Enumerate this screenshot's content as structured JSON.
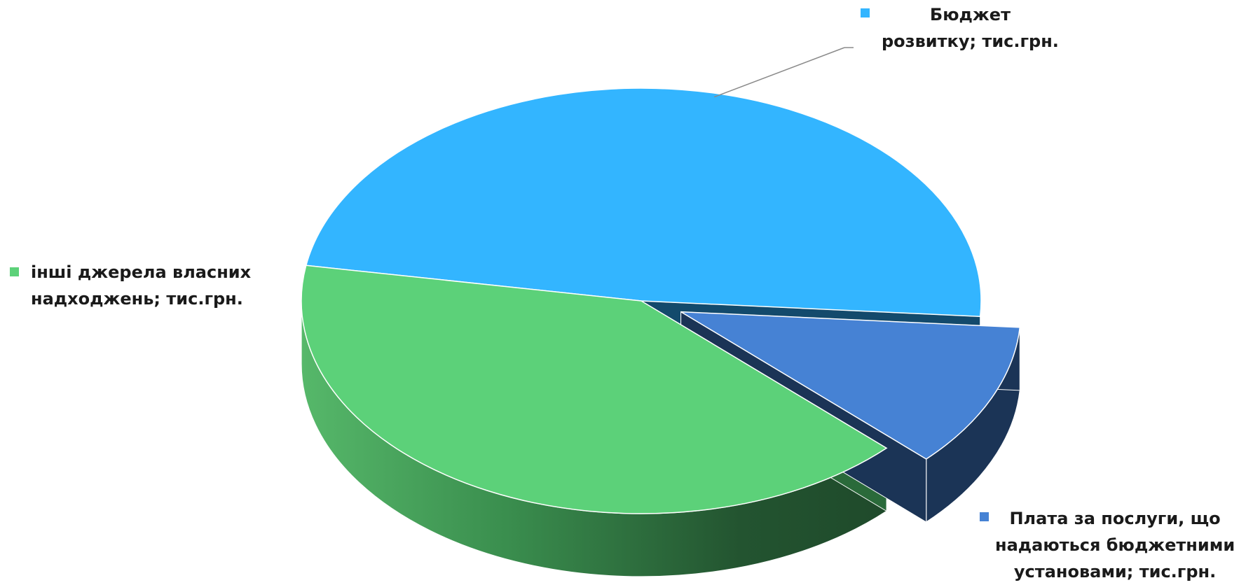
{
  "chart_data": {
    "type": "pie",
    "style": "3d-exploded",
    "title": "",
    "slices": [
      {
        "label_lines": [
          "Бюджет",
          "розвитку; тис.грн."
        ],
        "value": 48.5,
        "color": "#33B5FF",
        "side_color": "#134A6C"
      },
      {
        "label_lines": [
          "Плата за послуги, що",
          "надаються бюджетними",
          "установами; тис.грн."
        ],
        "value": 11.0,
        "color": "#4682D4",
        "side_color": "#1B3456",
        "exploded": true
      },
      {
        "label_lines": [
          "інші джерела власних",
          "надходжень;  тис.грн."
        ],
        "value": 40.5,
        "color": "#5CD179",
        "side_color": "#2A6A3A"
      }
    ],
    "legend": "labels-outside"
  }
}
